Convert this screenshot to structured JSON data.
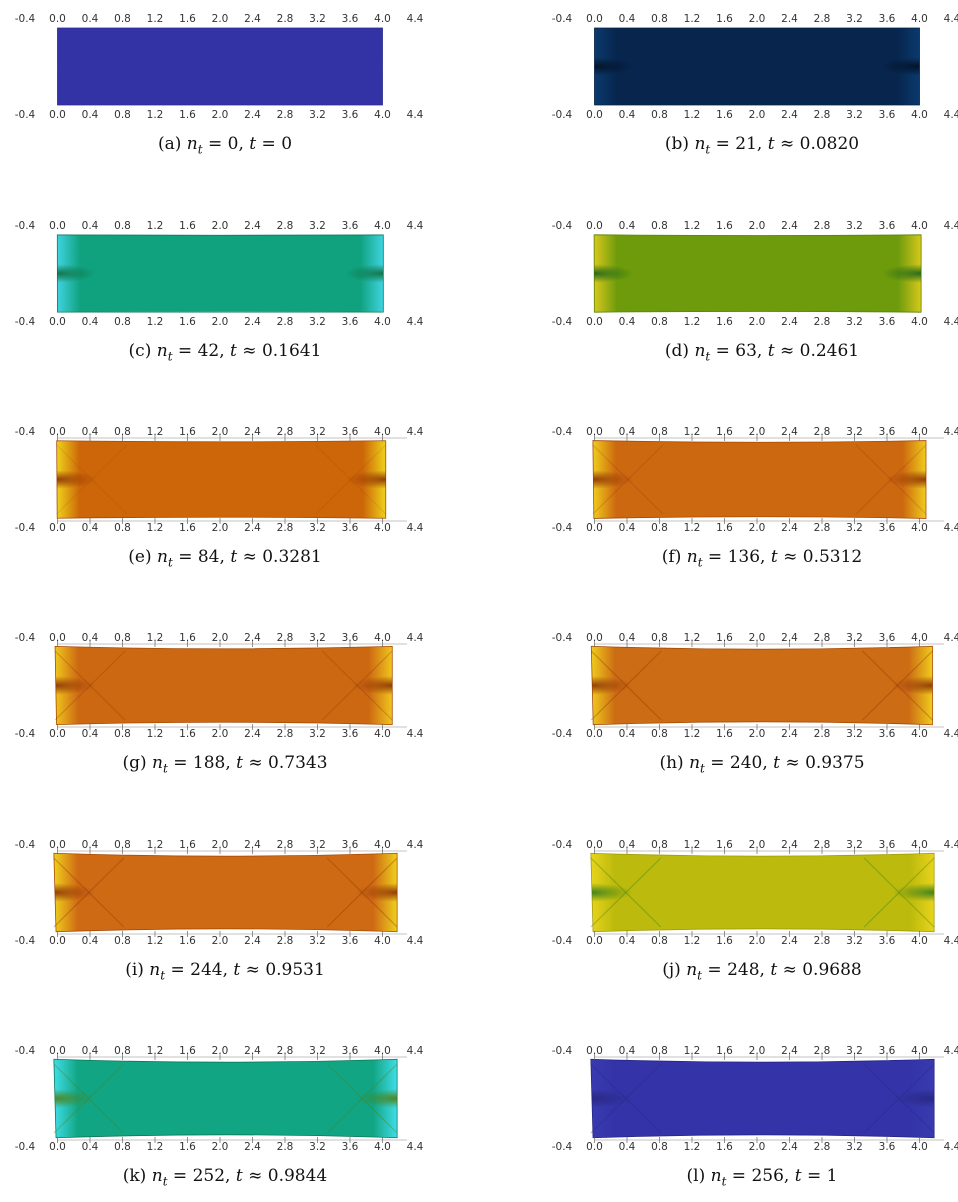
{
  "figure": {
    "axis_ticks": [
      "-0.4",
      "0.0",
      "0.4",
      "0.8",
      "1.2",
      "1.6",
      "2.0",
      "2.4",
      "2.8",
      "3.2",
      "3.6",
      "4.0",
      "4.4"
    ],
    "x_range": [
      -0.4,
      4.4
    ],
    "panels": [
      {
        "id": "a",
        "letter": "(a)",
        "nt": "0",
        "rel": "=",
        "t": "0",
        "color": "#3433a6",
        "edge": "#2a2a8c",
        "hot": "#3433a6",
        "dark": "#3433a6",
        "bulge": 0.0,
        "shear": 0.0
      },
      {
        "id": "b",
        "letter": "(b)",
        "nt": "21",
        "rel": "≈",
        "t": "0.0820",
        "color": "#07254d",
        "edge": "#062044",
        "hot": "#0b3a6e",
        "dark": "#020f22",
        "bulge": 0.0,
        "shear": 0.0
      },
      {
        "id": "c",
        "letter": "(c)",
        "nt": "42",
        "rel": "≈",
        "t": "0.1641",
        "color": "#10a27f",
        "edge": "#0b7a59",
        "hot": "#3fd3e0",
        "dark": "#0d6a3a",
        "bulge": 0.02,
        "shear": 0.01
      },
      {
        "id": "d",
        "letter": "(d)",
        "nt": "63",
        "rel": "≈",
        "t": "0.2461",
        "color": "#6e9b0c",
        "edge": "#5a8206",
        "hot": "#d8c81c",
        "dark": "#14601a",
        "bulge": 0.04,
        "shear": 0.02
      },
      {
        "id": "e",
        "letter": "(e)",
        "nt": "84",
        "rel": "≈",
        "t": "0.3281",
        "color": "#cc6608",
        "edge": "#a84c06",
        "hot": "#efd21a",
        "dark": "#8a2e04",
        "bulge": 0.06,
        "shear": 0.04
      },
      {
        "id": "f",
        "letter": "(f)",
        "nt": "136",
        "rel": "≈",
        "t": "0.5312",
        "color": "#cc6810",
        "edge": "#a84c06",
        "hot": "#f0cc1c",
        "dark": "#8a2e04",
        "bulge": 0.1,
        "shear": 0.08
      },
      {
        "id": "g",
        "letter": "(g)",
        "nt": "188",
        "rel": "≈",
        "t": "0.7343",
        "color": "#cc6812",
        "edge": "#a84c06",
        "hot": "#f0c61c",
        "dark": "#8a2e04",
        "bulge": 0.14,
        "shear": 0.12
      },
      {
        "id": "h",
        "letter": "(h)",
        "nt": "240",
        "rel": "≈",
        "t": "0.9375",
        "color": "#cc6c14",
        "edge": "#a84c06",
        "hot": "#efcc1c",
        "dark": "#8a2e04",
        "bulge": 0.17,
        "shear": 0.16
      },
      {
        "id": "i",
        "letter": "(i)",
        "nt": "244",
        "rel": "≈",
        "t": "0.9531",
        "color": "#ce6a14",
        "edge": "#a84c06",
        "hot": "#efd01c",
        "dark": "#8a2e04",
        "bulge": 0.17,
        "shear": 0.18
      },
      {
        "id": "j",
        "letter": "(j)",
        "nt": "248",
        "rel": "≈",
        "t": "0.9688",
        "color": "#bcba0c",
        "edge": "#a49c08",
        "hot": "#e8d41c",
        "dark": "#2f7a1a",
        "bulge": 0.17,
        "shear": 0.18
      },
      {
        "id": "k",
        "letter": "(k)",
        "nt": "252",
        "rel": "≈",
        "t": "0.9844",
        "color": "#12a584",
        "edge": "#0c7a58",
        "hot": "#3fdde8",
        "dark": "#4d7e0e",
        "bulge": 0.17,
        "shear": 0.18
      },
      {
        "id": "l",
        "letter": "(l)",
        "nt": "256",
        "rel": "=",
        "t": "1",
        "color": "#3434a8",
        "edge": "#262688",
        "hot": "#3a3ab0",
        "dark": "#26267e",
        "bulge": 0.17,
        "shear": 0.18
      }
    ]
  }
}
